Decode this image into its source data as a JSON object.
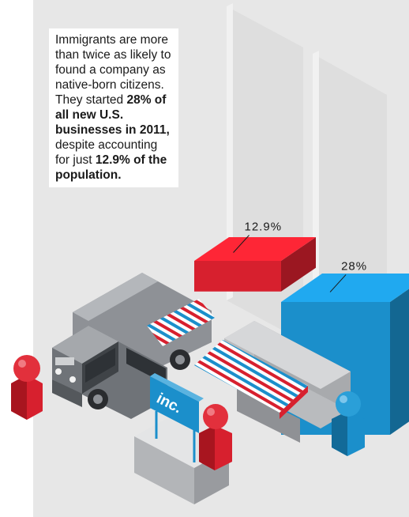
{
  "text": {
    "p1": "Immigrants are more than twice as likely to found a company as native-born citizens. They started ",
    "b1": "28% of all new U.S. businesses in 2011,",
    "p2": " despite accounting for just ",
    "b2": "12.9% of the population."
  },
  "sign_text": "inc.",
  "chart_data": {
    "type": "bar",
    "title": "",
    "xlabel": "",
    "ylabel": "",
    "categories": [
      "",
      ""
    ],
    "values": [
      12.9,
      28
    ],
    "labels": [
      "12.9%",
      "28%"
    ],
    "colors": [
      "#d7202e",
      "#1b8fcb"
    ]
  },
  "colors": {
    "red": "#d7202e",
    "blue": "#1b8fcb",
    "background_panel": "#e7e7e7"
  }
}
